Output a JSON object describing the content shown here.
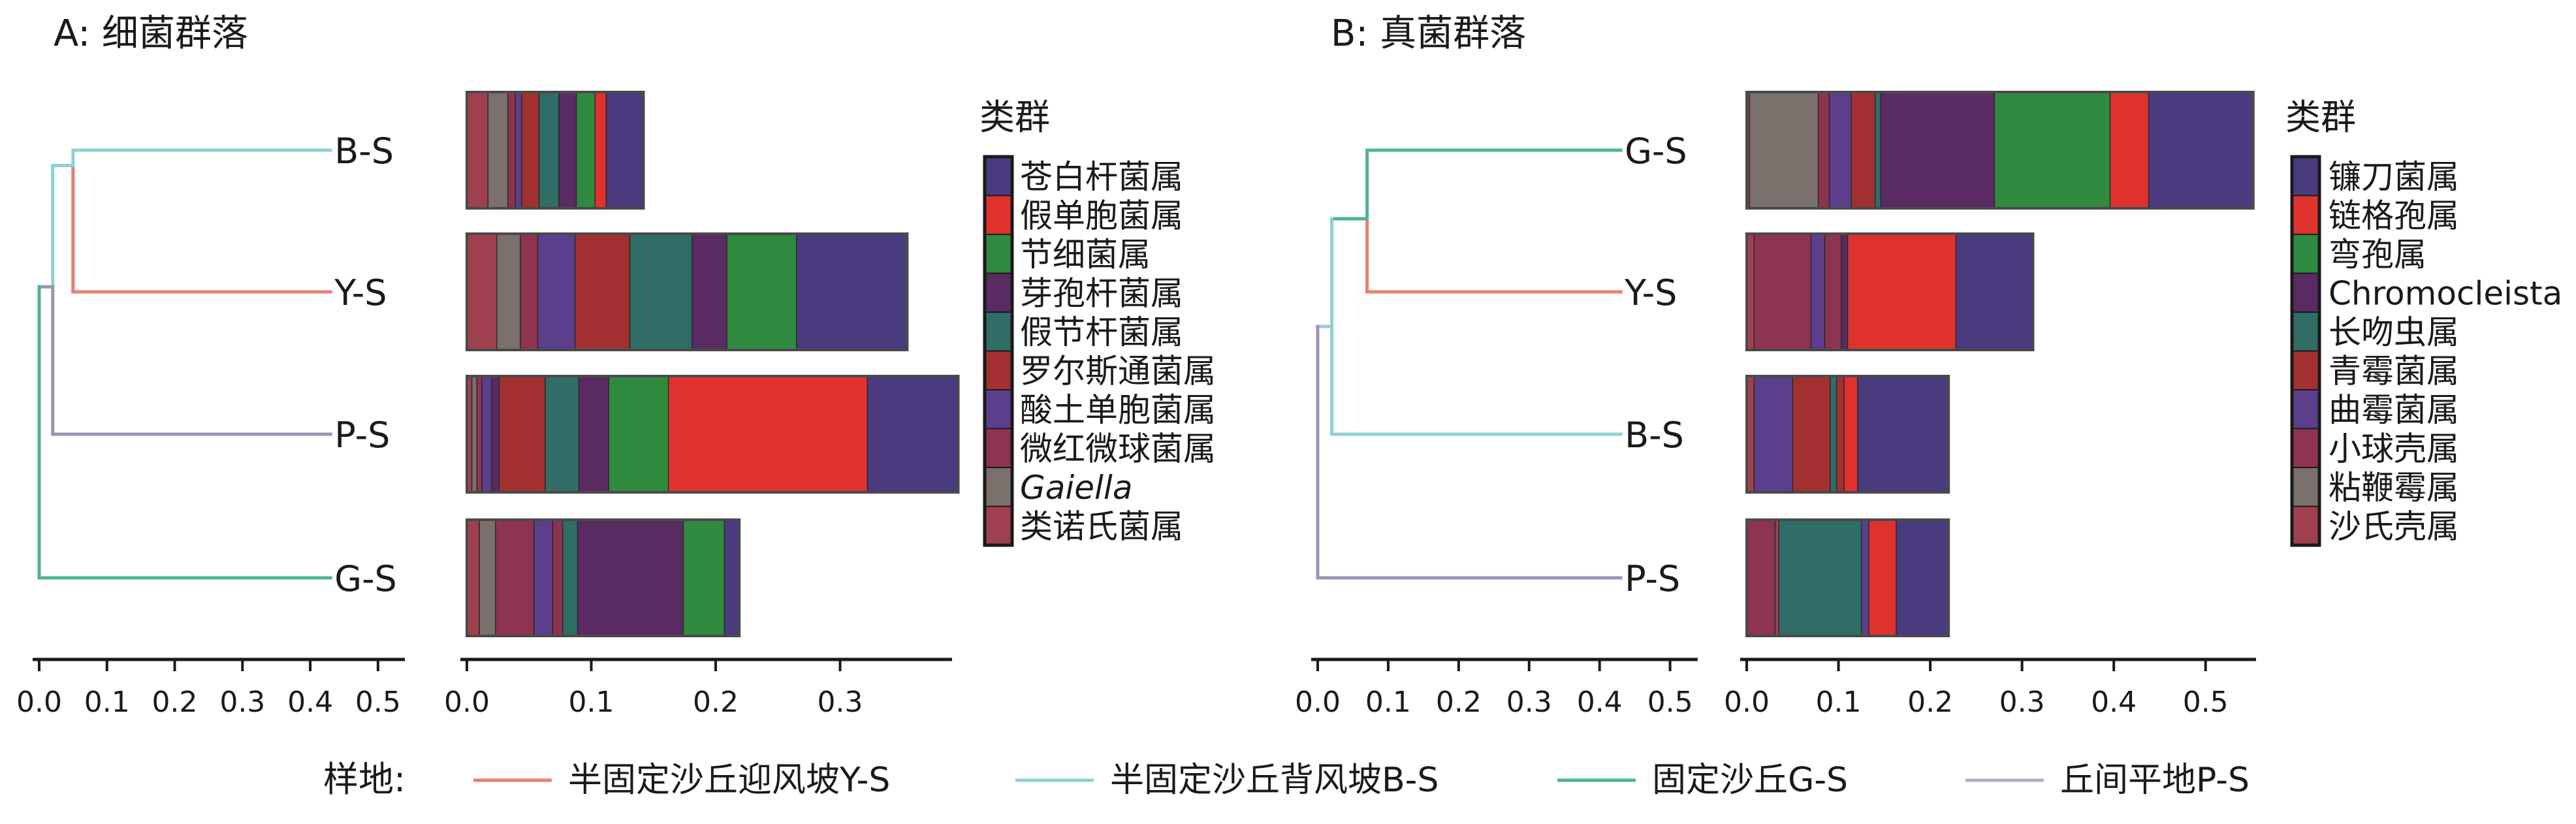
{
  "chart_data": [
    {
      "type": "bar",
      "title": "A: 细菌群落",
      "legend_title": "类群",
      "samples": [
        "B-S",
        "Y-S",
        "P-S",
        "G-S"
      ],
      "taxa": [
        {
          "name": "苍白杆菌属",
          "color": "#4a3a7e"
        },
        {
          "name": "假单胞菌属",
          "color": "#e0322d"
        },
        {
          "name": "节细菌属",
          "color": "#2f8a3f"
        },
        {
          "name": "芽孢杆菌属",
          "color": "#5a2a63"
        },
        {
          "name": "假节杆菌属",
          "color": "#2f6d66"
        },
        {
          "name": "罗尔斯通菌属",
          "color": "#a33030"
        },
        {
          "name": "酸土单胞菌属",
          "color": "#5c3f8c"
        },
        {
          "name": "微红微球菌属",
          "color": "#8e3450"
        },
        {
          "name": "Gaiella",
          "color": "#7a706c",
          "italic": true
        },
        {
          "name": "类诺氏菌属",
          "color": "#a0404e"
        }
      ],
      "bars": [
        {
          "sample": "B-S",
          "segments": [
            {
              "taxon": "类诺氏菌属",
              "value": 0.017
            },
            {
              "taxon": "Gaiella",
              "value": 0.016
            },
            {
              "taxon": "微红微球菌属",
              "value": 0.006
            },
            {
              "taxon": "酸土单胞菌属",
              "value": 0.005
            },
            {
              "taxon": "罗尔斯通菌属",
              "value": 0.014
            },
            {
              "taxon": "假节杆菌属",
              "value": 0.016
            },
            {
              "taxon": "芽孢杆菌属",
              "value": 0.014
            },
            {
              "taxon": "节细菌属",
              "value": 0.015
            },
            {
              "taxon": "假单胞菌属",
              "value": 0.009
            },
            {
              "taxon": "苍白杆菌属",
              "value": 0.03
            }
          ]
        },
        {
          "sample": "Y-S",
          "segments": [
            {
              "taxon": "类诺氏菌属",
              "value": 0.024
            },
            {
              "taxon": "Gaiella",
              "value": 0.019
            },
            {
              "taxon": "微红微球菌属",
              "value": 0.014
            },
            {
              "taxon": "酸土单胞菌属",
              "value": 0.03
            },
            {
              "taxon": "罗尔斯通菌属",
              "value": 0.044
            },
            {
              "taxon": "假节杆菌属",
              "value": 0.05
            },
            {
              "taxon": "芽孢杆菌属",
              "value": 0.028
            },
            {
              "taxon": "节细菌属",
              "value": 0.056
            },
            {
              "taxon": "苍白杆菌属",
              "value": 0.089
            }
          ]
        },
        {
          "sample": "P-S",
          "segments": [
            {
              "taxon": "类诺氏菌属",
              "value": 0.004
            },
            {
              "taxon": "Gaiella",
              "value": 0.004
            },
            {
              "taxon": "微红微球菌属",
              "value": 0.004
            },
            {
              "taxon": "酸土单胞菌属",
              "value": 0.008
            },
            {
              "taxon": "芽孢杆菌属",
              "value": 0.006
            },
            {
              "taxon": "罗尔斯通菌属",
              "value": 0.037
            },
            {
              "taxon": "假节杆菌属",
              "value": 0.027
            },
            {
              "taxon": "芽孢杆菌属",
              "value": 0.024
            },
            {
              "taxon": "节细菌属",
              "value": 0.048
            },
            {
              "taxon": "假单胞菌属",
              "value": 0.16
            },
            {
              "taxon": "苍白杆菌属",
              "value": 0.073
            }
          ]
        },
        {
          "sample": "G-S",
          "segments": [
            {
              "taxon": "类诺氏菌属",
              "value": 0.01
            },
            {
              "taxon": "Gaiella",
              "value": 0.013
            },
            {
              "taxon": "微红微球菌属",
              "value": 0.031
            },
            {
              "taxon": "酸土单胞菌属",
              "value": 0.015
            },
            {
              "taxon": "微红微球菌属",
              "value": 0.008
            },
            {
              "taxon": "假节杆菌属",
              "value": 0.012
            },
            {
              "taxon": "芽孢杆菌属",
              "value": 0.085
            },
            {
              "taxon": "节细菌属",
              "value": 0.033
            },
            {
              "taxon": "苍白杆菌属",
              "value": 0.012
            }
          ]
        }
      ],
      "bar_axis": {
        "xlim": [
          0,
          0.39
        ],
        "ticks": [
          "0.0",
          "0.1",
          "0.2",
          "0.3"
        ]
      },
      "dendrogram": {
        "xlim": [
          0,
          0.53
        ],
        "ticks": [
          "0.0",
          "0.1",
          "0.2",
          "0.3",
          "0.4",
          "0.5"
        ],
        "leaf_end": 0.43,
        "branches": [
          {
            "leaf": "B-S",
            "color": "#8fd0d6"
          },
          {
            "leaf": "Y-S",
            "color": "#ec7d72"
          },
          {
            "leaf": "P-S",
            "color": "#9a94b8"
          },
          {
            "leaf": "G-S",
            "color": "#4fb394"
          }
        ]
      }
    },
    {
      "type": "bar",
      "title": "B: 真菌群落",
      "legend_title": "类群",
      "samples": [
        "G-S",
        "Y-S",
        "B-S",
        "P-S"
      ],
      "taxa": [
        {
          "name": "镰刀菌属",
          "color": "#4a3a7e"
        },
        {
          "name": "链格孢属",
          "color": "#e0322d"
        },
        {
          "name": "弯孢属",
          "color": "#2f8a3f"
        },
        {
          "name": "Chromocleista",
          "color": "#5a2a63"
        },
        {
          "name": "长吻虫属",
          "color": "#2f6d66"
        },
        {
          "name": "青霉菌属",
          "color": "#a33030"
        },
        {
          "name": "曲霉菌属",
          "color": "#5c3f8c"
        },
        {
          "name": "小球壳属",
          "color": "#8e3450"
        },
        {
          "name": "粘鞭霉属",
          "color": "#7a706c"
        },
        {
          "name": "沙氏壳属",
          "color": "#a0404e"
        }
      ],
      "bars": [
        {
          "sample": "G-S",
          "segments": [
            {
              "taxon": "沙氏壳属",
              "value": 0.003
            },
            {
              "taxon": "粘鞭霉属",
              "value": 0.075
            },
            {
              "taxon": "小球壳属",
              "value": 0.012
            },
            {
              "taxon": "曲霉菌属",
              "value": 0.024
            },
            {
              "taxon": "青霉菌属",
              "value": 0.026
            },
            {
              "taxon": "长吻虫属",
              "value": 0.006
            },
            {
              "taxon": "Chromocleista",
              "value": 0.124
            },
            {
              "taxon": "弯孢属",
              "value": 0.126
            },
            {
              "taxon": "链格孢属",
              "value": 0.042
            },
            {
              "taxon": "镰刀菌属",
              "value": 0.114
            }
          ]
        },
        {
          "sample": "Y-S",
          "segments": [
            {
              "taxon": "沙氏壳属",
              "value": 0.008
            },
            {
              "taxon": "小球壳属",
              "value": 0.062
            },
            {
              "taxon": "曲霉菌属",
              "value": 0.015
            },
            {
              "taxon": "小球壳属",
              "value": 0.018
            },
            {
              "taxon": "Chromocleista",
              "value": 0.007
            },
            {
              "taxon": "链格孢属",
              "value": 0.118
            },
            {
              "taxon": "镰刀菌属",
              "value": 0.084
            }
          ]
        },
        {
          "sample": "B-S",
          "segments": [
            {
              "taxon": "沙氏壳属",
              "value": 0.008
            },
            {
              "taxon": "曲霉菌属",
              "value": 0.042
            },
            {
              "taxon": "青霉菌属",
              "value": 0.041
            },
            {
              "taxon": "长吻虫属",
              "value": 0.007
            },
            {
              "taxon": "青霉菌属",
              "value": 0.008
            },
            {
              "taxon": "链格孢属",
              "value": 0.015
            },
            {
              "taxon": "镰刀菌属",
              "value": 0.099
            }
          ]
        },
        {
          "sample": "P-S",
          "segments": [
            {
              "taxon": "小球壳属",
              "value": 0.031
            },
            {
              "taxon": "沙氏壳属",
              "value": 0.004
            },
            {
              "taxon": "长吻虫属",
              "value": 0.09
            },
            {
              "taxon": "曲霉菌属",
              "value": 0.008
            },
            {
              "taxon": "链格孢属",
              "value": 0.03
            },
            {
              "taxon": "镰刀菌属",
              "value": 0.057
            }
          ]
        }
      ],
      "bar_axis": {
        "xlim": [
          0,
          0.555
        ],
        "ticks": [
          "0.0",
          "0.1",
          "0.2",
          "0.3",
          "0.4",
          "0.5"
        ]
      },
      "dendrogram": {
        "xlim": [
          0,
          0.53
        ],
        "ticks": [
          "0.0",
          "0.1",
          "0.2",
          "0.3",
          "0.4",
          "0.5"
        ],
        "leaf_end": 0.43,
        "branches": [
          {
            "leaf": "G-S",
            "color": "#4fb394"
          },
          {
            "leaf": "Y-S",
            "color": "#ec7d72"
          },
          {
            "leaf": "B-S",
            "color": "#8fd0d6"
          },
          {
            "leaf": "P-S",
            "color": "#9a94b8"
          }
        ]
      }
    }
  ],
  "site_legend": {
    "label": "样地:",
    "items": [
      {
        "name": "半固定沙丘迎风坡Y-S",
        "color": "#ec7d72"
      },
      {
        "name": "半固定沙丘背风坡B-S",
        "color": "#8fd0d6"
      },
      {
        "name": "固定沙丘G-S",
        "color": "#4fb394"
      },
      {
        "name": "丘间平地P-S",
        "color": "#b2aec6"
      }
    ]
  }
}
